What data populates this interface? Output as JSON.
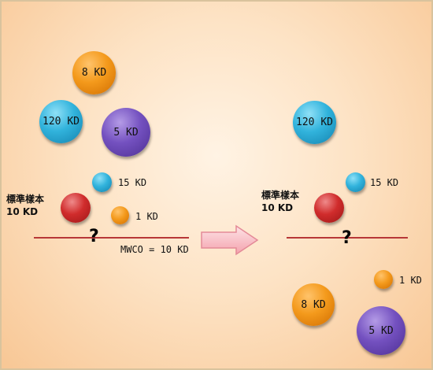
{
  "left": {
    "balls": {
      "kd8": "8 KD",
      "kd120": "120 KD",
      "kd5": "5 KD"
    },
    "kd15": "15 KD",
    "kd1": "1 KD",
    "standard": [
      "標準樣本",
      "10 KD"
    ],
    "question": "?",
    "mwco": "MWCO = 10 KD"
  },
  "right": {
    "balls": {
      "kd120": "120 KD",
      "kd8": "8 KD",
      "kd5": "5 KD"
    },
    "kd15": "15 KD",
    "kd1": "1 KD",
    "standard": [
      "標準樣本",
      "10 KD"
    ],
    "question": "?"
  },
  "colors": {
    "orange": "#f49a1c",
    "blue": "#31b3dc",
    "purple": "#7451c0",
    "red": "#d02c2c",
    "membrane": "#b73737",
    "arrow": "#f7b5bd"
  }
}
